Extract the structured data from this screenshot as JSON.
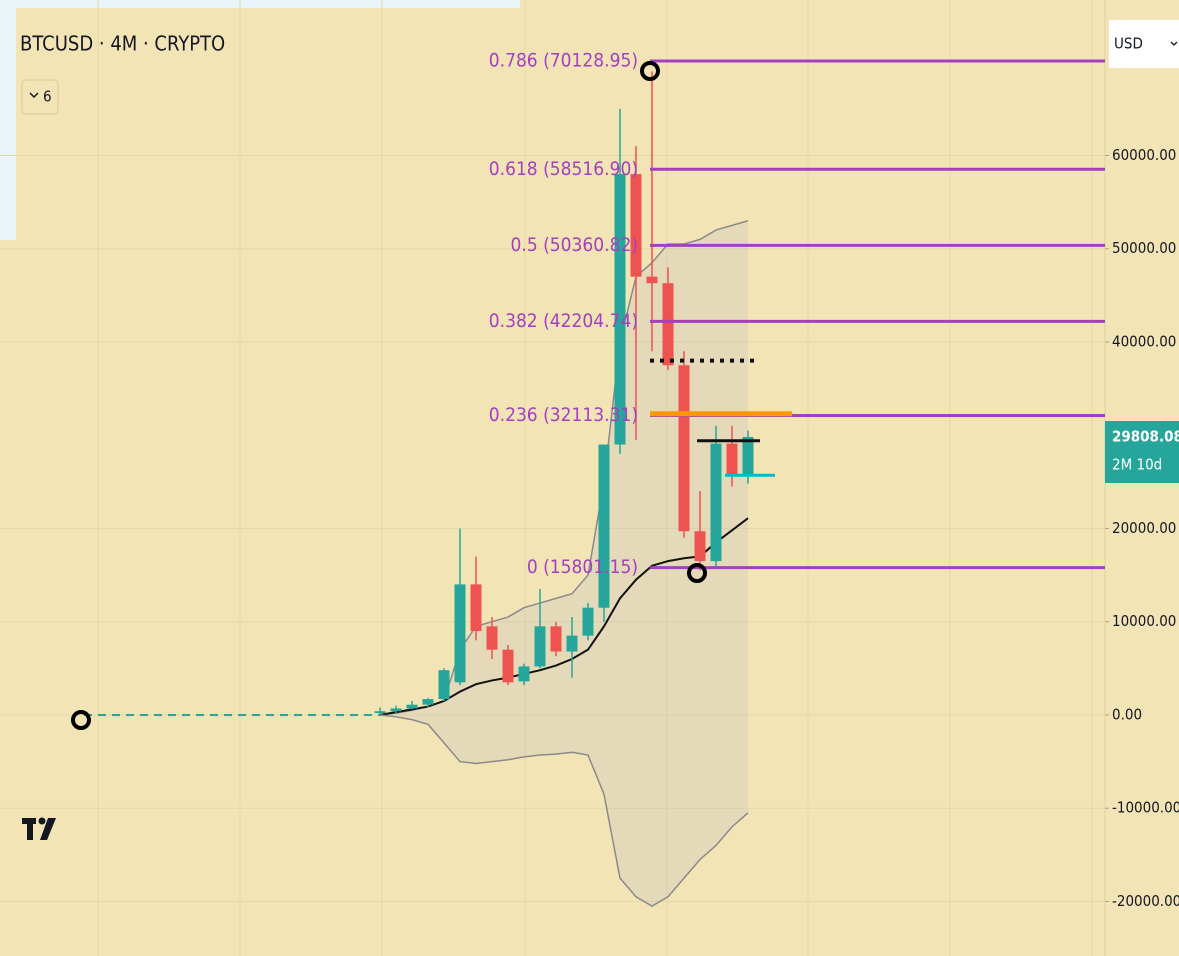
{
  "header": {
    "symbol": "BTCUSD · 4M · CRYPTO",
    "indicator_count": 6
  },
  "currency": "USD",
  "chart_data": {
    "type": "candlestick",
    "categories": [
      null,
      null,
      null,
      null,
      null,
      null,
      null,
      null,
      null,
      null,
      null,
      null,
      null,
      null,
      null,
      null,
      null,
      null,
      null,
      null,
      null,
      null,
      null,
      null
    ],
    "open": [
      200,
      400,
      700,
      1100,
      1700,
      3500,
      14000,
      9500,
      7000,
      3600,
      5200,
      9500,
      6800,
      8500,
      11500,
      29000,
      58000,
      47000,
      46300,
      37500,
      19700,
      16500,
      29100,
      25700
    ],
    "high": [
      800,
      1000,
      1500,
      1800,
      5000,
      20000,
      17000,
      10500,
      7500,
      5500,
      13500,
      10000,
      10500,
      12000,
      29000,
      65000,
      61000,
      69000,
      48000,
      39000,
      24000,
      31000,
      31000,
      30500
    ],
    "low": [
      100,
      200,
      600,
      800,
      1500,
      3200,
      8000,
      6000,
      3200,
      3200,
      5000,
      6300,
      4000,
      8000,
      10000,
      28000,
      29500,
      39000,
      37000,
      19000,
      15500,
      15800,
      24500,
      24800
    ],
    "close": [
      400,
      700,
      1100,
      1700,
      4800,
      14000,
      9000,
      7000,
      3500,
      5200,
      9500,
      6800,
      8500,
      11500,
      29000,
      58000,
      47000,
      46300,
      37500,
      19700,
      16500,
      29100,
      25700,
      29808.08
    ],
    "up_color": "#26a69a",
    "down_color": "#ef5350",
    "series": [
      {
        "color": "#8a8a8a",
        "values": [
          0,
          200,
          500,
          900,
          1500,
          7000,
          9500,
          10000,
          10500,
          11500,
          12000,
          12500,
          13000,
          15000,
          25000,
          40000,
          47000,
          48500,
          50500,
          50500,
          51000,
          52000,
          52500,
          53000
        ]
      },
      {
        "color": "#111111",
        "values": [
          0,
          300,
          600,
          900,
          1500,
          2500,
          3300,
          3700,
          4000,
          4400,
          4800,
          5300,
          6000,
          7000,
          9500,
          12500,
          14500,
          16000,
          16500,
          16800,
          17000,
          18500,
          19800,
          21100
        ]
      },
      {
        "color": "#8a8a8a",
        "values": [
          0,
          -200,
          -500,
          -1000,
          -3000,
          -5000,
          -5200,
          -5000,
          -4800,
          -4500,
          -4300,
          -4200,
          -4000,
          -4300,
          -8500,
          -17500,
          -19500,
          -20500,
          -19500,
          -17500,
          -15500,
          -14000,
          -12000,
          -10500
        ]
      }
    ],
    "fib_color": "#a43fbf",
    "fib_levels": [
      {
        "label": "0.786 (70128.95)",
        "value": 70128.95
      },
      {
        "label": "0.618 (58516.90)",
        "value": 58516.9
      },
      {
        "label": "0.5 (50360.82)",
        "value": 50360.82
      },
      {
        "label": "0.382 (42204.74)",
        "value": 42204.74
      },
      {
        "label": "0.236 (32113.31)",
        "value": 32113.31
      },
      {
        "label": "0 (15801.15)",
        "value": 15801.15
      }
    ],
    "price_lines": [
      {
        "value": 32300,
        "color": "#ff9800",
        "style": "solid"
      },
      {
        "value": 38000,
        "color": "#111111",
        "style": "dotted"
      },
      {
        "value": 29400,
        "color": "#111111",
        "style": "solid"
      },
      {
        "value": 25700,
        "color": "#00bcd4",
        "style": "solid"
      }
    ],
    "last_price": 29808.08,
    "countdown": "2M 10d",
    "ylim": [
      -25850,
      76670
    ],
    "yticks": [
      {
        "value": 60000,
        "label": "60000.00"
      },
      {
        "value": 50000,
        "label": "50000.00"
      },
      {
        "value": 40000,
        "label": "40000.00"
      },
      {
        "value": 20000,
        "label": "20000.00"
      },
      {
        "value": 10000,
        "label": "10000.00"
      },
      {
        "value": 0,
        "label": "0.00"
      },
      {
        "value": -10000,
        "label": "-10000.00"
      },
      {
        "value": -20000,
        "label": "-20000.00"
      }
    ],
    "grid": true
  }
}
